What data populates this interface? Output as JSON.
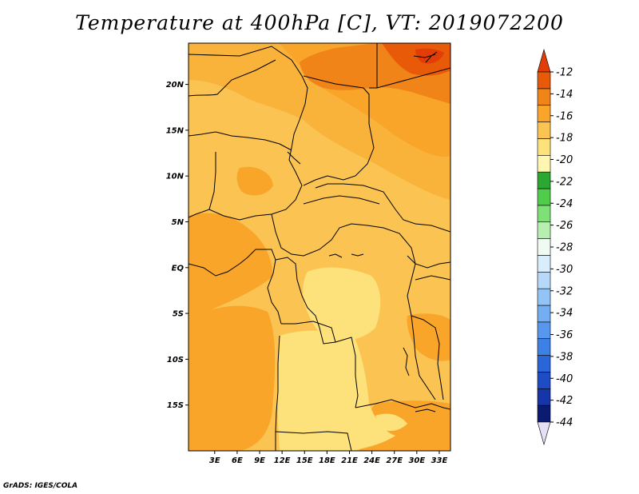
{
  "title": "Temperature at 400hPa [C], VT: 2019072200",
  "credit": "GrADS: IGES/COLA",
  "map": {
    "lon_range": [
      -0.5,
      34.5
    ],
    "lat_range": [
      -20,
      24.5
    ],
    "x_ticks": [
      {
        "lon": 3,
        "label": "3E"
      },
      {
        "lon": 6,
        "label": "6E"
      },
      {
        "lon": 9,
        "label": "9E"
      },
      {
        "lon": 12,
        "label": "12E"
      },
      {
        "lon": 15,
        "label": "15E"
      },
      {
        "lon": 18,
        "label": "18E"
      },
      {
        "lon": 21,
        "label": "21E"
      },
      {
        "lon": 24,
        "label": "24E"
      },
      {
        "lon": 27,
        "label": "27E"
      },
      {
        "lon": 30,
        "label": "30E"
      },
      {
        "lon": 33,
        "label": "33E"
      }
    ],
    "y_ticks": [
      {
        "lat": 20,
        "label": "20N"
      },
      {
        "lat": 15,
        "label": "15N"
      },
      {
        "lat": 10,
        "label": "10N"
      },
      {
        "lat": 5,
        "label": "5N"
      },
      {
        "lat": 0,
        "label": "EQ"
      },
      {
        "lat": -5,
        "label": "5S"
      },
      {
        "lat": -10,
        "label": "10S"
      },
      {
        "lat": -15,
        "label": "15S"
      }
    ]
  },
  "colorbar": {
    "colors": [
      "#e6ddf7",
      "#0b1b72",
      "#1535a8",
      "#1e4cc4",
      "#2b66d8",
      "#3d81e6",
      "#5798ee",
      "#73aef2",
      "#93c4f6",
      "#b6d9fa",
      "#d9eefd",
      "#eefaf2",
      "#b6efb0",
      "#80e078",
      "#4fcd4a",
      "#2aa832",
      "#fff7b0",
      "#fde17a",
      "#fbc351",
      "#f8a52a",
      "#f08418",
      "#e85a08",
      "#e23d06"
    ],
    "labels": [
      "-44",
      "-42",
      "-40",
      "-38",
      "-36",
      "-34",
      "-32",
      "-30",
      "-28",
      "-26",
      "-24",
      "-22",
      "-20",
      "-18",
      "-16",
      "-14",
      "-12"
    ]
  }
}
